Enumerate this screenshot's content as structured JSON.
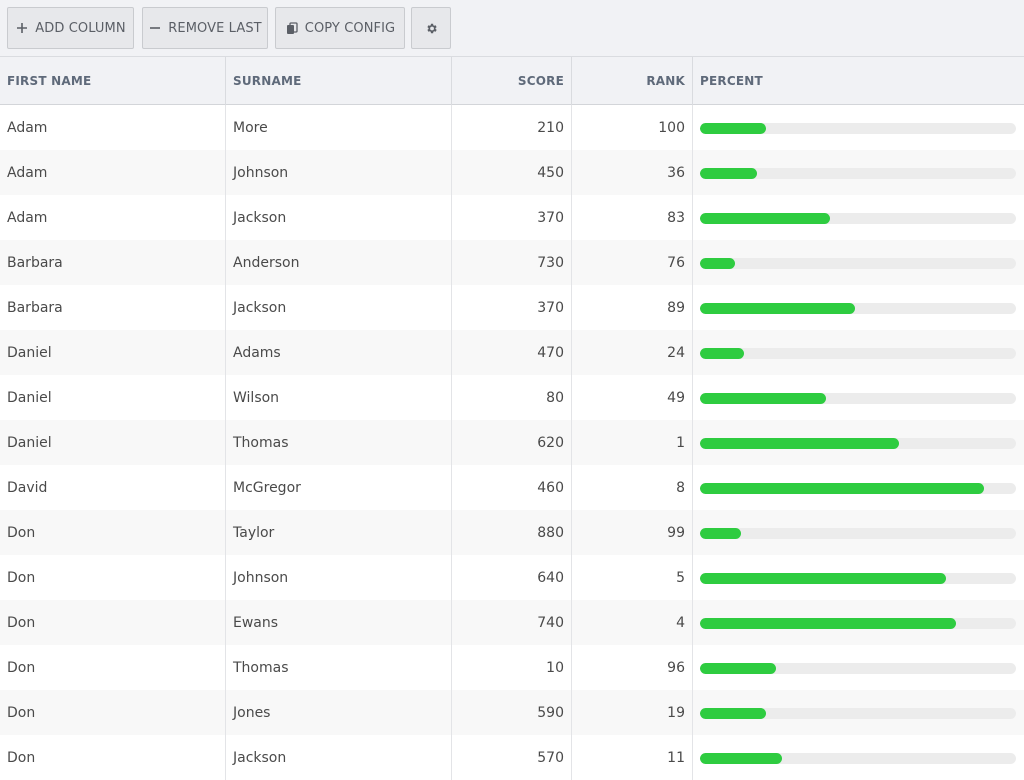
{
  "toolbar": {
    "add_column": {
      "label": "ADD COLUMN",
      "icon": "plus-icon"
    },
    "remove_last": {
      "label": "REMOVE LAST",
      "icon": "minus-icon"
    },
    "copy_config": {
      "label": "COPY CONFIG",
      "icon": "copy-icon"
    },
    "settings": {
      "icon": "gear-icon"
    }
  },
  "table": {
    "headers": [
      "FIRST NAME",
      "SURNAME",
      "SCORE",
      "RANK",
      "PERCENT"
    ],
    "rows": [
      {
        "first": "Adam",
        "surname": "More",
        "score": "210",
        "rank": "100",
        "percent": 0.21
      },
      {
        "first": "Adam",
        "surname": "Johnson",
        "score": "450",
        "rank": "36",
        "percent": 0.18
      },
      {
        "first": "Adam",
        "surname": "Jackson",
        "score": "370",
        "rank": "83",
        "percent": 0.41
      },
      {
        "first": "Barbara",
        "surname": "Anderson",
        "score": "730",
        "rank": "76",
        "percent": 0.11
      },
      {
        "first": "Barbara",
        "surname": "Jackson",
        "score": "370",
        "rank": "89",
        "percent": 0.49
      },
      {
        "first": "Daniel",
        "surname": "Adams",
        "score": "470",
        "rank": "24",
        "percent": 0.14
      },
      {
        "first": "Daniel",
        "surname": "Wilson",
        "score": "80",
        "rank": "49",
        "percent": 0.4
      },
      {
        "first": "Daniel",
        "surname": "Thomas",
        "score": "620",
        "rank": "1",
        "percent": 0.63
      },
      {
        "first": "David",
        "surname": "McGregor",
        "score": "460",
        "rank": "8",
        "percent": 0.9
      },
      {
        "first": "Don",
        "surname": "Taylor",
        "score": "880",
        "rank": "99",
        "percent": 0.13
      },
      {
        "first": "Don",
        "surname": "Johnson",
        "score": "640",
        "rank": "5",
        "percent": 0.78
      },
      {
        "first": "Don",
        "surname": "Ewans",
        "score": "740",
        "rank": "4",
        "percent": 0.81
      },
      {
        "first": "Don",
        "surname": "Thomas",
        "score": "10",
        "rank": "96",
        "percent": 0.24
      },
      {
        "first": "Don",
        "surname": "Jones",
        "score": "590",
        "rank": "19",
        "percent": 0.21
      },
      {
        "first": "Don",
        "surname": "Jackson",
        "score": "570",
        "rank": "11",
        "percent": 0.26
      }
    ]
  },
  "colors": {
    "bar": "#2ecc40",
    "track": "#ececec",
    "header_bg": "#f1f2f5"
  }
}
